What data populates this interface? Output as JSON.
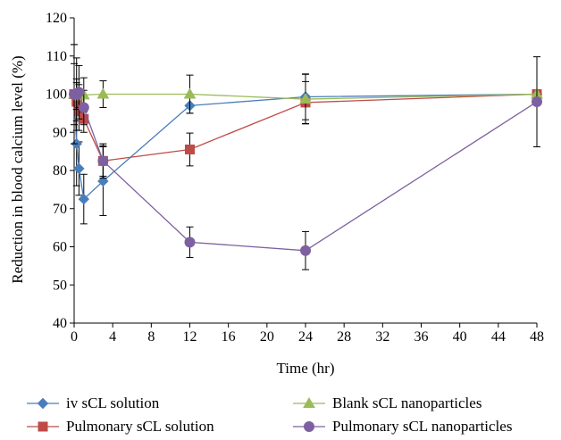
{
  "chart_data": {
    "type": "line",
    "xlabel": "Time (hr)",
    "ylabel": "Reduction in blood calcium level (%)",
    "xlim": [
      0,
      48
    ],
    "ylim": [
      40,
      120
    ],
    "xticks": [
      0,
      4,
      8,
      12,
      16,
      20,
      24,
      28,
      32,
      36,
      40,
      44,
      48
    ],
    "yticks": [
      40,
      50,
      60,
      70,
      80,
      90,
      100,
      110,
      120
    ],
    "grid": false,
    "legend_position": "bottom",
    "series": [
      {
        "name": "iv sCL solution",
        "color": "#4a7ebb",
        "marker": "diamond",
        "x": [
          0,
          0.25,
          0.5,
          1,
          3,
          12,
          24,
          48
        ],
        "y": [
          100,
          87,
          80.5,
          72.5,
          77.2,
          97,
          99.3,
          100
        ],
        "err": [
          13,
          11,
          7,
          6.5,
          9,
          2,
          6,
          0
        ]
      },
      {
        "name": "Pulmonary sCL solution",
        "color": "#be4b48",
        "marker": "square",
        "x": [
          0,
          0.25,
          0.5,
          1,
          3,
          12,
          24,
          48
        ],
        "y": [
          100,
          98,
          95.5,
          93.5,
          82.5,
          85.5,
          97.8,
          100
        ],
        "err": [
          8,
          5,
          5,
          3.5,
          4.5,
          4.3,
          5.5,
          0
        ]
      },
      {
        "name": "Blank sCL nanoparticles",
        "color": "#9bbb59",
        "marker": "triangle",
        "x": [
          0,
          0.25,
          0.5,
          1,
          3,
          12,
          24,
          48
        ],
        "y": [
          100,
          100,
          99.5,
          99.8,
          100,
          100,
          98.7,
          100
        ],
        "err": [
          0,
          4,
          3,
          4.5,
          3.5,
          5,
          6.5,
          0
        ]
      },
      {
        "name": "Pulmonary sCL nanoparticles",
        "color": "#7d60a0",
        "marker": "circle",
        "x": [
          0,
          0.25,
          0.5,
          1,
          3,
          12,
          24,
          48
        ],
        "y": [
          100,
          100,
          100.5,
          96.5,
          82.5,
          61.2,
          59,
          98
        ],
        "err": [
          13,
          9.5,
          7,
          4.5,
          4,
          4,
          5,
          11.8
        ]
      }
    ]
  }
}
